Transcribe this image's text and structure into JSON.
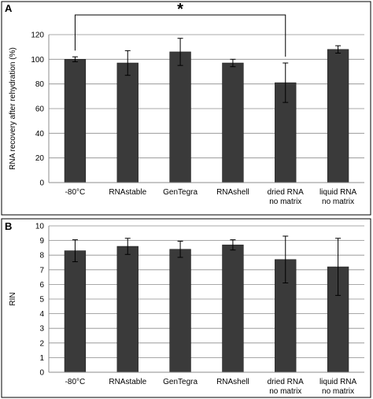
{
  "chart_data": [
    {
      "type": "bar",
      "panel_label": "A",
      "categories": [
        "-80°C",
        "RNAstable",
        "GenTegra",
        "RNAshell",
        "dried RNA no matrix",
        "liquid RNA no matrix"
      ],
      "category_lines": [
        [
          "-80°C"
        ],
        [
          "RNAstable"
        ],
        [
          "GenTegra"
        ],
        [
          "RNAshell"
        ],
        [
          "dried RNA",
          "no matrix"
        ],
        [
          "liquid RNA",
          "no matrix"
        ]
      ],
      "values": [
        100,
        97,
        106,
        97,
        81,
        108
      ],
      "errors": [
        2,
        10,
        11,
        3,
        16,
        3
      ],
      "ylabel": "RNA recovery after rehydration (%)",
      "ylim": [
        0,
        120
      ],
      "yticks": [
        0,
        20,
        40,
        60,
        80,
        100,
        120
      ],
      "grid": true,
      "bar_color": "#3a3a3a",
      "annotation": {
        "text": "*",
        "from_category": 0,
        "to_category": 4
      }
    },
    {
      "type": "bar",
      "panel_label": "B",
      "categories": [
        "-80°C",
        "RNAstable",
        "GenTegra",
        "RNAshell",
        "dried RNA no matrix",
        "liquid RNA no matrix"
      ],
      "category_lines": [
        [
          "-80°C"
        ],
        [
          "RNAstable"
        ],
        [
          "GenTegra"
        ],
        [
          "RNAshell"
        ],
        [
          "dried RNA",
          "no matrix"
        ],
        [
          "liquid RNA",
          "no matrix"
        ]
      ],
      "values": [
        8.3,
        8.6,
        8.4,
        8.7,
        7.7,
        7.2
      ],
      "errors": [
        0.75,
        0.55,
        0.55,
        0.35,
        1.6,
        1.95
      ],
      "ylabel": "RIN",
      "ylim": [
        0,
        10
      ],
      "yticks": [
        0,
        1,
        2,
        3,
        4,
        5,
        6,
        7,
        8,
        9,
        10
      ],
      "grid": true,
      "bar_color": "#3a3a3a"
    }
  ]
}
